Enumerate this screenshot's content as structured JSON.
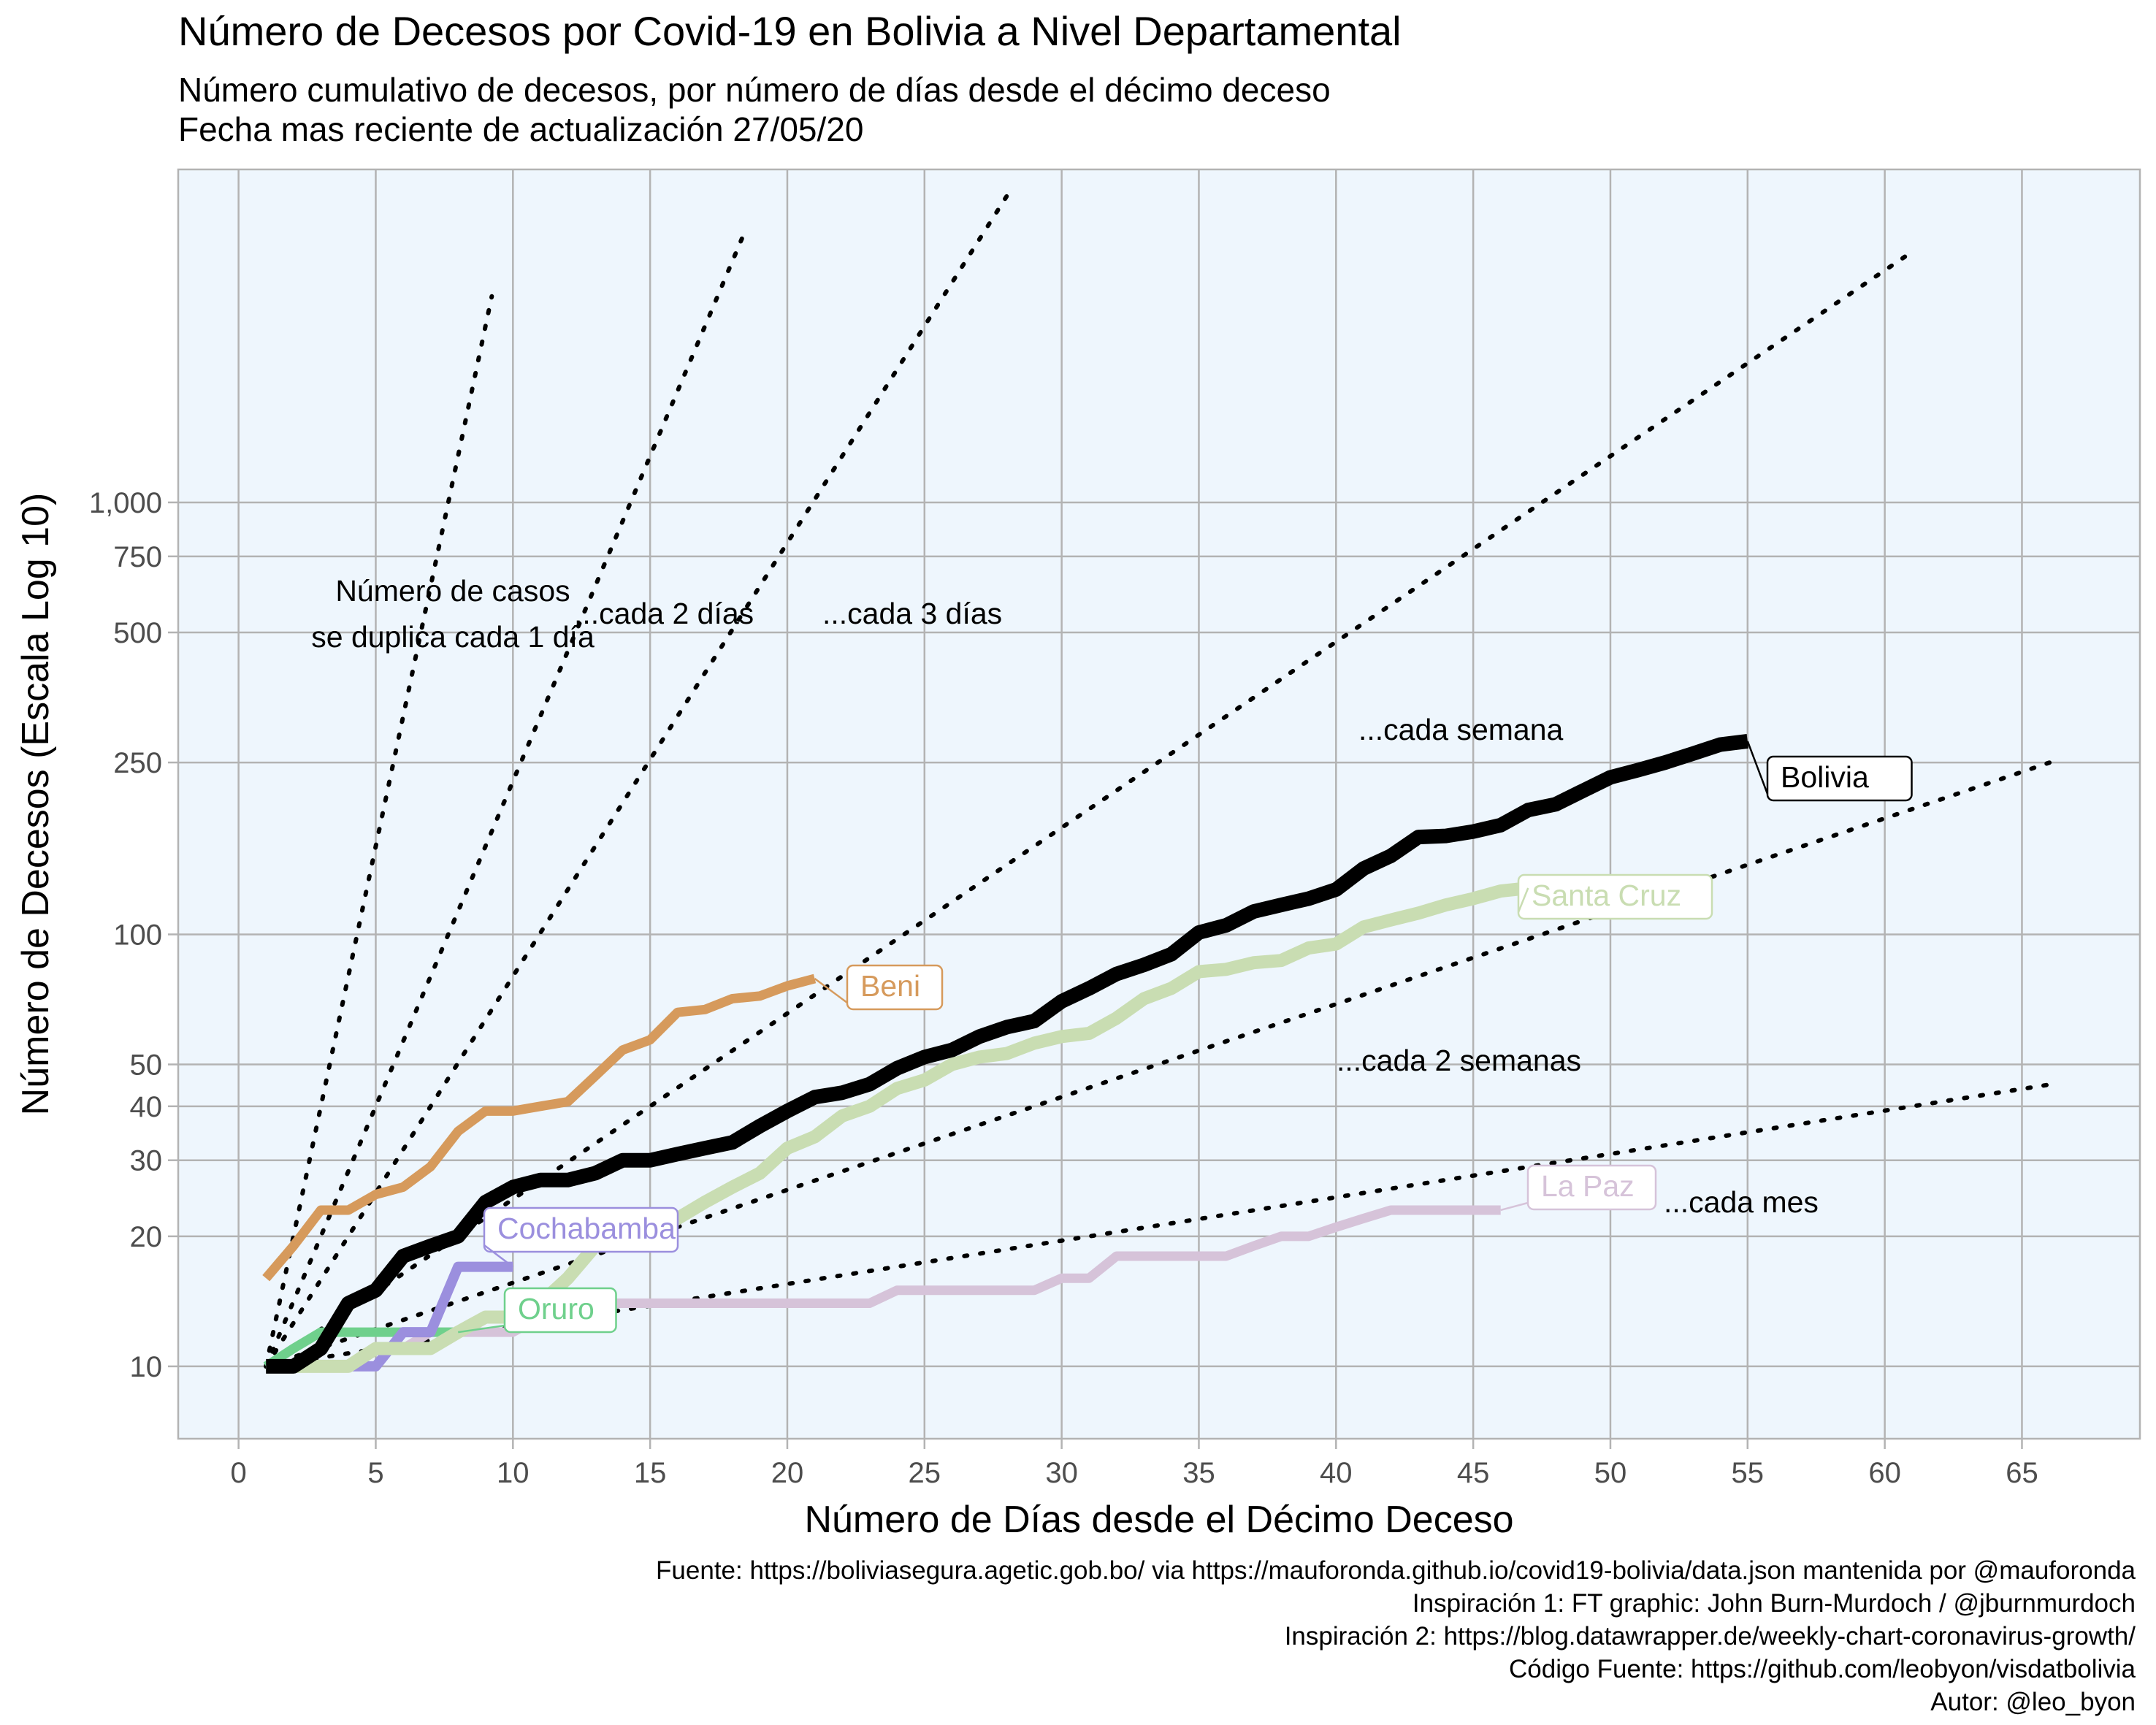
{
  "title": "Número de Decesos por Covid-19 en Bolivia a Nivel Departamental",
  "subtitle_1": "Número cumulativo de decesos, por número de días desde el décimo deceso",
  "subtitle_2": "Fecha mas reciente de actualización 27/05/20",
  "caption": [
    "Fuente: https://boliviasegura.agetic.gob.bo/ via https://mauforonda.github.io/covid19-bolivia/data.json mantenida por @mauforonda",
    "Inspiración 1: FT graphic: John Burn-Murdoch / @jburnmurdoch",
    "Inspiración 2: https://blog.datawrapper.de/weekly-chart-coronavirus-growth/",
    "Código Fuente: https://github.com/leobyon/visdatbolivia",
    "Autor: @leo_byon"
  ],
  "colors": {
    "panel_background": "#eef6fd",
    "grid": "#b3b3b3",
    "Bolivia": "#000000",
    "Santa Cruz": "#c9ddb2",
    "Beni": "#d69a5c",
    "La Paz": "#d6c3d9",
    "Cochabamba": "#9b8fde",
    "Oruro": "#6fd08c"
  },
  "chart_data": {
    "type": "line",
    "xlabel": "Número de Días desde el Décimo Deceso",
    "ylabel": "Número de Decesos (Escala Log 10)",
    "y_scale": "log10",
    "xlim": [
      -2.2,
      69.3
    ],
    "ylim": [
      6.8,
      5900
    ],
    "x_ticks": [
      0,
      5,
      10,
      15,
      20,
      25,
      30,
      35,
      40,
      45,
      50,
      55,
      60,
      65
    ],
    "x_tick_labels": [
      "0",
      "5",
      "10",
      "15",
      "20",
      "25",
      "30",
      "35",
      "40",
      "45",
      "50",
      "55",
      "60",
      "65"
    ],
    "y_ticks": [
      10,
      20,
      30,
      40,
      50,
      100,
      250,
      500,
      750,
      1000
    ],
    "y_tick_labels": [
      "10",
      "20",
      "30",
      "40",
      "50",
      "100",
      "250",
      "500",
      "750",
      "1,000"
    ],
    "grid": true,
    "series": [
      {
        "name": "Bolivia",
        "x": [
          1,
          2,
          3,
          4,
          5,
          6,
          7,
          8,
          9,
          10,
          11,
          12,
          13,
          14,
          15,
          16,
          17,
          18,
          19,
          20,
          21,
          22,
          23,
          24,
          25,
          26,
          27,
          28,
          29,
          30,
          31,
          32,
          33,
          34,
          35,
          36,
          37,
          38,
          39,
          40,
          41,
          42,
          43,
          44,
          45,
          46,
          47,
          48,
          49,
          50,
          51,
          52,
          53,
          54,
          55
        ],
        "y": [
          10,
          10,
          11,
          14,
          15,
          18,
          19,
          20,
          24,
          26,
          27,
          27,
          28,
          30,
          30,
          31,
          32,
          33,
          36,
          39,
          42,
          43,
          45,
          49,
          52,
          54,
          58,
          61,
          63,
          70,
          75,
          81,
          85,
          90,
          101,
          105,
          113,
          117,
          121,
          127,
          142,
          152,
          168,
          169,
          173,
          179,
          194,
          200,
          215,
          231,
          240,
          250,
          262,
          275,
          280
        ]
      },
      {
        "name": "Santa Cruz",
        "x": [
          1,
          2,
          3,
          4,
          5,
          6,
          7,
          8,
          9,
          10,
          11,
          12,
          13,
          14,
          15,
          16,
          17,
          18,
          19,
          20,
          21,
          22,
          23,
          24,
          25,
          26,
          27,
          28,
          29,
          30,
          31,
          32,
          33,
          34,
          35,
          36,
          37,
          38,
          39,
          40,
          41,
          42,
          43,
          44,
          45,
          46,
          47
        ],
        "y": [
          10,
          10,
          10,
          10,
          11,
          11,
          11,
          12,
          13,
          13,
          14,
          16,
          19,
          19,
          20,
          22,
          24,
          26,
          28,
          32,
          34,
          38,
          40,
          44,
          46,
          50,
          52,
          53,
          56,
          58,
          59,
          64,
          71,
          75,
          82,
          83,
          86,
          87,
          93,
          95,
          104,
          108,
          112,
          117,
          121,
          126,
          128
        ]
      },
      {
        "name": "Beni",
        "x": [
          1,
          2,
          3,
          4,
          5,
          6,
          7,
          8,
          9,
          10,
          11,
          12,
          13,
          14,
          15,
          16,
          17,
          18,
          19,
          20,
          21
        ],
        "y": [
          16,
          19,
          23,
          23,
          25,
          26,
          29,
          35,
          39,
          39,
          40,
          41,
          47,
          54,
          57,
          66,
          67,
          71,
          72,
          76,
          79
        ]
      },
      {
        "name": "La Paz",
        "x": [
          1,
          2,
          3,
          4,
          5,
          6,
          7,
          8,
          9,
          10,
          11,
          12,
          13,
          14,
          15,
          16,
          17,
          18,
          19,
          20,
          21,
          22,
          23,
          24,
          25,
          26,
          27,
          28,
          29,
          30,
          31,
          32,
          33,
          34,
          35,
          36,
          37,
          38,
          39,
          40,
          41,
          42,
          43,
          44,
          45,
          46
        ],
        "y": [
          10,
          10,
          10,
          10,
          11,
          11,
          12,
          12,
          12,
          12,
          13,
          14,
          14,
          14,
          14,
          14,
          14,
          14,
          14,
          14,
          14,
          14,
          14,
          15,
          15,
          15,
          15,
          15,
          15,
          16,
          16,
          18,
          18,
          18,
          18,
          18,
          19,
          20,
          20,
          21,
          22,
          23,
          23,
          23,
          23,
          23
        ]
      },
      {
        "name": "Cochabamba",
        "x": [
          1,
          2,
          3,
          4,
          5,
          6,
          7,
          8,
          9,
          10
        ],
        "y": [
          10,
          10,
          10,
          10,
          10,
          12,
          12,
          17,
          17,
          17
        ]
      },
      {
        "name": "Oruro",
        "x": [
          1,
          2,
          3,
          4,
          5,
          6,
          7,
          8
        ],
        "y": [
          10,
          11,
          12,
          12,
          12,
          12,
          12,
          12
        ]
      }
    ],
    "reference_lines": [
      {
        "label": "Número de casos se duplica cada 1 día",
        "doubling_days": 1
      },
      {
        "label": "...cada 2 días",
        "doubling_days": 2
      },
      {
        "label": "...cada 3 días",
        "doubling_days": 3
      },
      {
        "label": "...cada semana",
        "doubling_days": 7
      },
      {
        "label": "...cada 2 semanas",
        "doubling_days": 14
      },
      {
        "label": "...cada mes",
        "doubling_days": 30
      }
    ],
    "annotations": [
      "Número de casos",
      "se duplica cada 1 día",
      "...cada 2 días",
      "...cada 3 días",
      "...cada semana",
      "...cada 2 semanas",
      "...cada mes"
    ]
  }
}
